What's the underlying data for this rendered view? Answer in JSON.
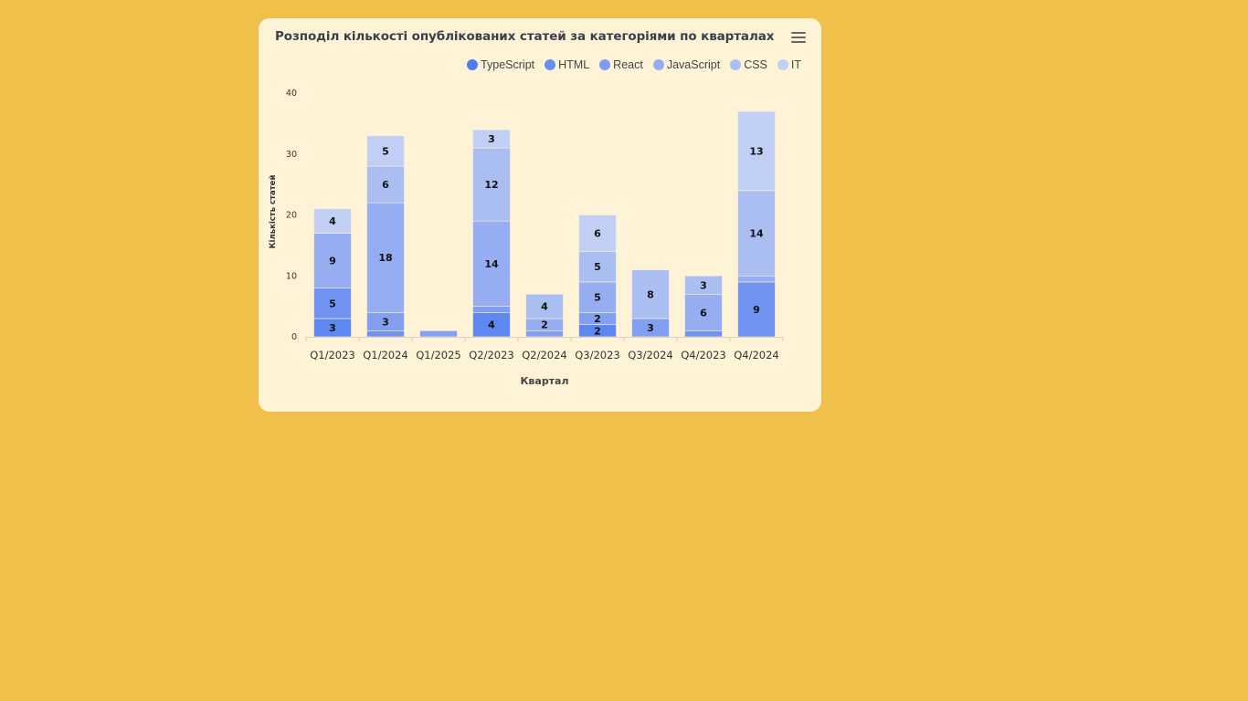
{
  "card": {
    "title": "Розподіл кількості опублікованих статей за категоріями по кварталах"
  },
  "colors": {
    "background": "#F0C04A",
    "card": "#FEF3D6"
  },
  "legend": [
    {
      "label": "TypeScript",
      "color": "#4F7CEF"
    },
    {
      "label": "HTML",
      "color": "#6790F0"
    },
    {
      "label": "React",
      "color": "#7E9CF2"
    },
    {
      "label": "JavaScript",
      "color": "#94AEF2"
    },
    {
      "label": "CSS",
      "color": "#ACC0F3"
    },
    {
      "label": "IT",
      "color": "#C2D0F5"
    }
  ],
  "chart_data": {
    "type": "bar",
    "stacked": true,
    "ylabel": "Кількість статей",
    "xlabel": "Квартал",
    "ylim": [
      0,
      40
    ],
    "yticks": [
      0,
      10,
      20,
      30,
      40
    ],
    "categories": [
      "Q1/2023",
      "Q1/2024",
      "Q1/2025",
      "Q2/2023",
      "Q2/2024",
      "Q3/2023",
      "Q3/2024",
      "Q4/2023",
      "Q4/2024"
    ],
    "series": [
      {
        "name": "TypeScript",
        "color": "#5F87F0",
        "values": [
          3,
          0,
          0,
          4,
          0,
          2,
          0,
          0,
          0
        ]
      },
      {
        "name": "HTML",
        "color": "#7092F0",
        "values": [
          5,
          1,
          0,
          0,
          0,
          0,
          0,
          1,
          9
        ]
      },
      {
        "name": "React",
        "color": "#829FF1",
        "values": [
          0,
          3,
          1,
          1,
          1,
          2,
          3,
          0,
          0
        ]
      },
      {
        "name": "JavaScript",
        "color": "#96AEF1",
        "values": [
          9,
          18,
          0,
          14,
          2,
          5,
          0,
          6,
          1
        ]
      },
      {
        "name": "CSS",
        "color": "#ABBEF2",
        "values": [
          0,
          6,
          0,
          12,
          4,
          5,
          8,
          3,
          14
        ]
      },
      {
        "name": "IT",
        "color": "#C1CFF4",
        "values": [
          4,
          5,
          0,
          3,
          0,
          6,
          0,
          0,
          13
        ]
      }
    ],
    "labels_shown": [
      [
        3,
        5,
        null,
        9,
        null,
        4
      ],
      [
        null,
        null,
        3,
        18,
        6,
        5
      ],
      [
        null,
        null,
        null,
        null,
        null,
        null
      ],
      [
        4,
        null,
        null,
        14,
        12,
        3
      ],
      [
        null,
        null,
        null,
        2,
        4,
        null
      ],
      [
        2,
        null,
        2,
        5,
        5,
        6
      ],
      [
        null,
        null,
        3,
        null,
        8,
        null
      ],
      [
        null,
        null,
        null,
        6,
        3,
        null
      ],
      [
        null,
        9,
        null,
        null,
        14,
        13
      ]
    ],
    "legend_position": "top-right",
    "grid": false
  }
}
